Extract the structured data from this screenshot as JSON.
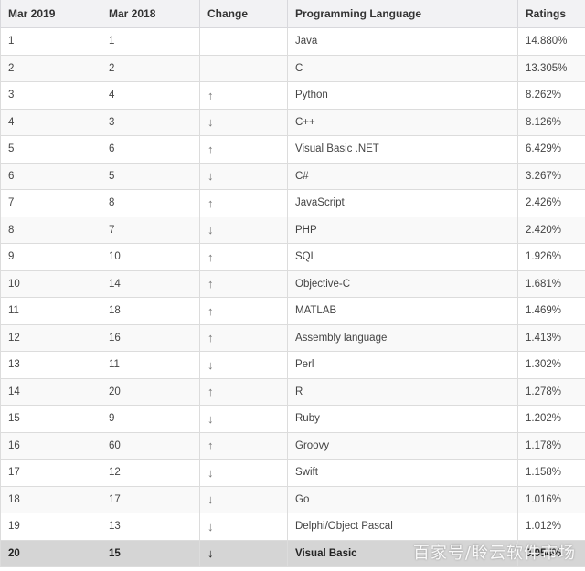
{
  "table": {
    "headers": [
      "Mar 2019",
      "Mar 2018",
      "Change",
      "Programming Language",
      "Ratings"
    ],
    "rows": [
      {
        "rank2019": "1",
        "rank2018": "1",
        "change": "",
        "language": "Java",
        "rating": "14.880%"
      },
      {
        "rank2019": "2",
        "rank2018": "2",
        "change": "",
        "language": "C",
        "rating": "13.305%"
      },
      {
        "rank2019": "3",
        "rank2018": "4",
        "change": "↑",
        "language": "Python",
        "rating": "8.262%"
      },
      {
        "rank2019": "4",
        "rank2018": "3",
        "change": "↓",
        "language": "C++",
        "rating": "8.126%"
      },
      {
        "rank2019": "5",
        "rank2018": "6",
        "change": "↑",
        "language": "Visual Basic .NET",
        "rating": "6.429%"
      },
      {
        "rank2019": "6",
        "rank2018": "5",
        "change": "↓",
        "language": "C#",
        "rating": "3.267%"
      },
      {
        "rank2019": "7",
        "rank2018": "8",
        "change": "↑",
        "language": "JavaScript",
        "rating": "2.426%"
      },
      {
        "rank2019": "8",
        "rank2018": "7",
        "change": "↓",
        "language": "PHP",
        "rating": "2.420%"
      },
      {
        "rank2019": "9",
        "rank2018": "10",
        "change": "↑",
        "language": "SQL",
        "rating": "1.926%"
      },
      {
        "rank2019": "10",
        "rank2018": "14",
        "change": "↑",
        "language": "Objective-C",
        "rating": "1.681%"
      },
      {
        "rank2019": "11",
        "rank2018": "18",
        "change": "↑",
        "language": "MATLAB",
        "rating": "1.469%"
      },
      {
        "rank2019": "12",
        "rank2018": "16",
        "change": "↑",
        "language": "Assembly language",
        "rating": "1.413%"
      },
      {
        "rank2019": "13",
        "rank2018": "11",
        "change": "↓",
        "language": "Perl",
        "rating": "1.302%"
      },
      {
        "rank2019": "14",
        "rank2018": "20",
        "change": "↑",
        "language": "R",
        "rating": "1.278%"
      },
      {
        "rank2019": "15",
        "rank2018": "9",
        "change": "↓",
        "language": "Ruby",
        "rating": "1.202%"
      },
      {
        "rank2019": "16",
        "rank2018": "60",
        "change": "↑",
        "language": "Groovy",
        "rating": "1.178%"
      },
      {
        "rank2019": "17",
        "rank2018": "12",
        "change": "↓",
        "language": "Swift",
        "rating": "1.158%"
      },
      {
        "rank2019": "18",
        "rank2018": "17",
        "change": "↓",
        "language": "Go",
        "rating": "1.016%"
      },
      {
        "rank2019": "19",
        "rank2018": "13",
        "change": "↓",
        "language": "Delphi/Object Pascal",
        "rating": "1.012%"
      },
      {
        "rank2019": "20",
        "rank2018": "15",
        "change": "↓",
        "language": "Visual Basic",
        "rating": "0.954%",
        "highlighted": true
      }
    ]
  },
  "watermark": "百家号/聆云软件市场",
  "colors": {
    "header_bg": "#f2f2f4",
    "row_alt_bg": "#f9f9f9",
    "highlight_bg": "#d5d5d5",
    "border": "#dcdcdc"
  }
}
